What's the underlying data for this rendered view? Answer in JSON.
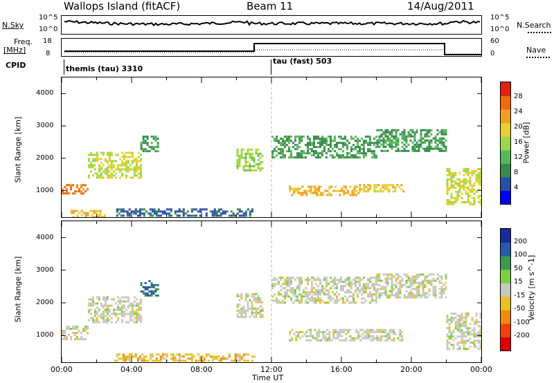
{
  "header": {
    "site": "Wallops Island (fitACF)",
    "beam": "Beam 11",
    "date": "14/Aug/2011"
  },
  "noise_panel": {
    "left_label": "N.Sky",
    "right_label": "N.Search",
    "left_ticks": [
      "10^5",
      "10^0"
    ],
    "right_ticks": [
      "10^5",
      "10^0"
    ]
  },
  "freq_panel": {
    "left_label_1": "Freq.",
    "left_label_2": "[MHz]",
    "right_label": "Nave",
    "left_ticks": [
      "18",
      "8"
    ],
    "right_ticks": [
      "60",
      "0"
    ]
  },
  "cpid_panel": {
    "label": "CPID",
    "modes": [
      {
        "name": "themis (tau) 3310",
        "start_hour": 0
      },
      {
        "name": "tau (fast) 503",
        "start_hour": 11.75
      }
    ]
  },
  "colors": {
    "power_scale": [
      "#0000ff",
      "#2a4fa8",
      "#3a8a50",
      "#58b858",
      "#9ad84a",
      "#e8d030",
      "#f0a020",
      "#f06a10",
      "#e02010"
    ],
    "velocity_scale": [
      "#1a2a9a",
      "#2a5aa8",
      "#3a9a50",
      "#7ad040",
      "#c8c8c0",
      "#e8c020",
      "#f08a10",
      "#f04010",
      "#e00000"
    ]
  },
  "chart_data": [
    {
      "type": "heatmap",
      "title": "",
      "xlabel": "Time UT",
      "ylabel": "Slant Range [km]",
      "xlim": [
        0,
        24
      ],
      "ylim": [
        180,
        4500
      ],
      "x_tick_labels": [
        "00:00",
        "04:00",
        "08:00",
        "12:00",
        "16:00",
        "20:00",
        "00:00"
      ],
      "y_tick_labels": [
        "1000",
        "2000",
        "3000",
        "4000"
      ],
      "colorbar": {
        "label": "Power [dB]",
        "range": [
          0,
          32
        ],
        "tick_labels": [
          "4",
          "8",
          "12",
          "16",
          "20",
          "24",
          "28"
        ]
      },
      "regions": [
        {
          "t": [
            0.0,
            1.5
          ],
          "r": [
            900,
            1200
          ],
          "value": 26
        },
        {
          "t": [
            1.5,
            4.5
          ],
          "r": [
            1400,
            2200
          ],
          "value": 18
        },
        {
          "t": [
            4.5,
            5.5
          ],
          "r": [
            2200,
            2700
          ],
          "value": 10
        },
        {
          "t": [
            0.5,
            2.5
          ],
          "r": [
            200,
            400
          ],
          "value": 22
        },
        {
          "t": [
            3.0,
            11.0
          ],
          "r": [
            200,
            450
          ],
          "value": 6
        },
        {
          "t": [
            10.0,
            11.5
          ],
          "r": [
            1600,
            2300
          ],
          "value": 16
        },
        {
          "t": [
            12.0,
            18.0
          ],
          "r": [
            2000,
            2700
          ],
          "value": 10
        },
        {
          "t": [
            13.0,
            17.0
          ],
          "r": [
            850,
            1150
          ],
          "value": 22
        },
        {
          "t": [
            17.0,
            19.5
          ],
          "r": [
            950,
            1200
          ],
          "value": 20
        },
        {
          "t": [
            18.0,
            22.0
          ],
          "r": [
            2200,
            2900
          ],
          "value": 10
        },
        {
          "t": [
            22.0,
            24.0
          ],
          "r": [
            600,
            1700
          ],
          "value": 18
        }
      ]
    },
    {
      "type": "heatmap",
      "title": "",
      "xlabel": "Time UT",
      "ylabel": "Slant Range [km]",
      "xlim": [
        0,
        24
      ],
      "ylim": [
        180,
        4500
      ],
      "x_tick_labels": [
        "00:00",
        "04:00",
        "08:00",
        "12:00",
        "16:00",
        "20:00",
        "00:00"
      ],
      "y_tick_labels": [
        "1000",
        "2000",
        "3000",
        "4000"
      ],
      "colorbar": {
        "label": "Velocity [m s^-1]",
        "range": [
          -250,
          250
        ],
        "tick_labels": [
          "200",
          "100",
          "50",
          "15",
          "-15",
          "-50",
          "-100",
          "-200"
        ]
      },
      "regions": [
        {
          "t": [
            0.0,
            1.5
          ],
          "r": [
            900,
            1300
          ],
          "value": 0
        },
        {
          "t": [
            1.5,
            4.5
          ],
          "r": [
            1400,
            2200
          ],
          "value": 0
        },
        {
          "t": [
            4.5,
            5.5
          ],
          "r": [
            2200,
            2700
          ],
          "value": 150
        },
        {
          "t": [
            3.0,
            11.0
          ],
          "r": [
            200,
            450
          ],
          "value": -60
        },
        {
          "t": [
            10.0,
            11.5
          ],
          "r": [
            1600,
            2300
          ],
          "value": 0
        },
        {
          "t": [
            12.0,
            18.0
          ],
          "r": [
            2000,
            2800
          ],
          "value": 0
        },
        {
          "t": [
            13.0,
            19.5
          ],
          "r": [
            850,
            1200
          ],
          "value": 0
        },
        {
          "t": [
            18.0,
            22.0
          ],
          "r": [
            2200,
            2900
          ],
          "value": 0
        },
        {
          "t": [
            22.0,
            24.0
          ],
          "r": [
            600,
            1700
          ],
          "value": 0
        }
      ]
    }
  ]
}
